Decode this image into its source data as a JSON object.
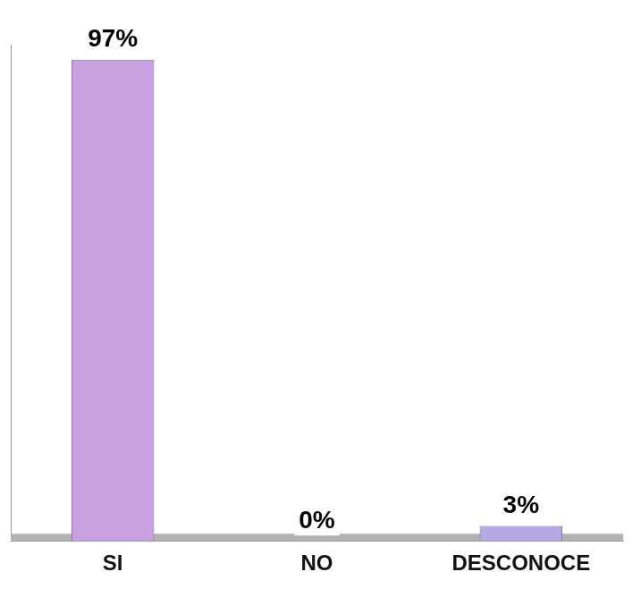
{
  "chart_data": {
    "type": "bar",
    "categories": [
      "SI",
      "NO",
      "DESCONOCE"
    ],
    "values": [
      97,
      0,
      3
    ],
    "value_labels": [
      "97%",
      "0%",
      "3%"
    ],
    "colors": [
      "#c8a2e0",
      "#8fa4e0",
      "#b6a8e6"
    ],
    "ylim": [
      0,
      100
    ],
    "grid": false,
    "data_labels": true,
    "tick_labels": "x"
  }
}
